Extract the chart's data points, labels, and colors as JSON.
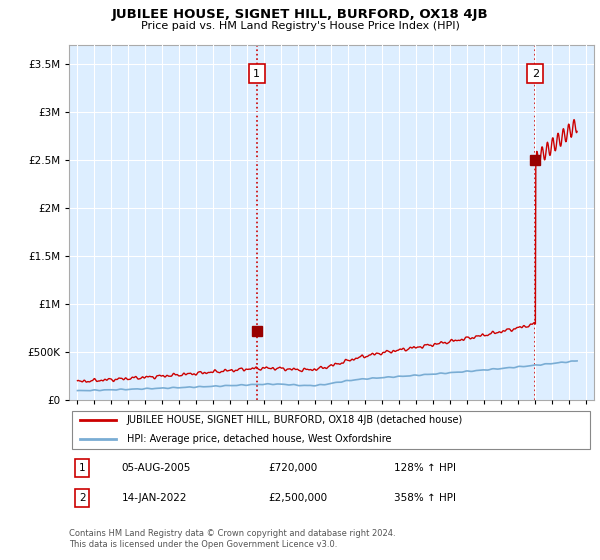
{
  "title": "JUBILEE HOUSE, SIGNET HILL, BURFORD, OX18 4JB",
  "subtitle": "Price paid vs. HM Land Registry's House Price Index (HPI)",
  "legend_line1": "JUBILEE HOUSE, SIGNET HILL, BURFORD, OX18 4JB (detached house)",
  "legend_line2": "HPI: Average price, detached house, West Oxfordshire",
  "annotation1_date": "05-AUG-2005",
  "annotation1_price": "£720,000",
  "annotation1_hpi": "128% ↑ HPI",
  "annotation2_date": "14-JAN-2022",
  "annotation2_price": "£2,500,000",
  "annotation2_hpi": "358% ↑ HPI",
  "footnote": "Contains HM Land Registry data © Crown copyright and database right 2024.\nThis data is licensed under the Open Government Licence v3.0.",
  "hpi_color": "#7aadd4",
  "price_color": "#cc0000",
  "bg_shade_color": "#ddeeff",
  "background_color": "#ffffff",
  "ylim": [
    0,
    3700000
  ],
  "yticks": [
    0,
    500000,
    1000000,
    1500000,
    2000000,
    2500000,
    3000000,
    3500000
  ],
  "xlim_start": 1994.5,
  "xlim_end": 2025.5,
  "sale1_year": 2005.58,
  "sale1_price": 720000,
  "sale2_year": 2022.04,
  "sale2_price": 2500000
}
